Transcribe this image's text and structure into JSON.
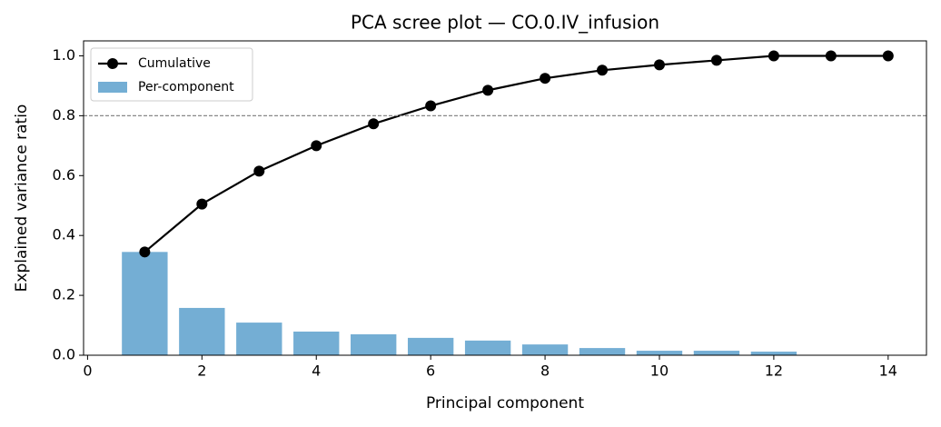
{
  "chart_data": {
    "type": "scree",
    "title": "PCA scree plot — CO.0.IV_infusion",
    "x_label": "Principal component",
    "y_label": "Explained variance ratio",
    "x": [
      1,
      2,
      3,
      4,
      5,
      6,
      7,
      8,
      9,
      10,
      11,
      12,
      13,
      14
    ],
    "series": [
      {
        "name": "Cumulative",
        "color": "#000000",
        "kind": "line",
        "values": [
          0.345,
          0.505,
          0.615,
          0.7,
          0.773,
          0.833,
          0.885,
          0.925,
          0.952,
          0.97,
          0.985,
          1.0,
          1.0,
          1.0
        ]
      },
      {
        "name": "Per-component",
        "color": "#74aed4",
        "kind": "bar",
        "values": [
          0.345,
          0.158,
          0.109,
          0.079,
          0.07,
          0.058,
          0.049,
          0.036,
          0.024,
          0.015,
          0.015,
          0.012,
          0.0,
          0.0
        ]
      }
    ],
    "threshold": 0.8,
    "xlim": [
      -0.07,
      14.67
    ],
    "ylim": [
      0,
      1.05
    ],
    "xticks": [
      0,
      2,
      4,
      6,
      8,
      10,
      12,
      14
    ],
    "yticks": [
      {
        "value": 0,
        "label": "0.0"
      },
      {
        "value": 0.2,
        "label": "0.2"
      },
      {
        "value": 0.4,
        "label": "0.4"
      },
      {
        "value": 0.6,
        "label": "0.6"
      },
      {
        "value": 0.8,
        "label": "0.8"
      },
      {
        "value": 1.0,
        "label": "1.0"
      }
    ],
    "legend": "upper left"
  }
}
